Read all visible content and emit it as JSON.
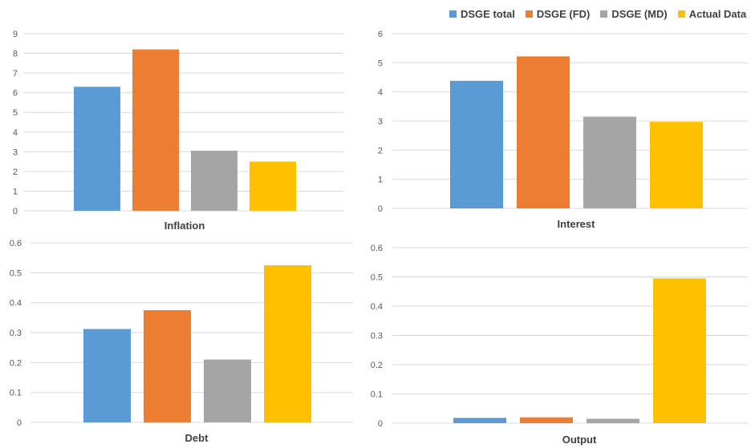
{
  "legend": {
    "items": [
      {
        "name": "DSGE total",
        "color": "#5B9BD5"
      },
      {
        "name": "DSGE (FD)",
        "color": "#ED7D31"
      },
      {
        "name": "DSGE (MD)",
        "color": "#A5A5A5"
      },
      {
        "name": "Actual Data",
        "color": "#FFC000"
      }
    ]
  },
  "chart_data": [
    {
      "type": "bar",
      "title": "Inflation",
      "categories": [
        "DSGE total",
        "DSGE (FD)",
        "DSGE (MD)",
        "Actual Data"
      ],
      "values": [
        6.3,
        8.2,
        3.05,
        2.5
      ],
      "ylim": [
        0,
        9
      ],
      "yticks": [
        "0",
        "1",
        "2",
        "3",
        "4",
        "5",
        "6",
        "7",
        "8",
        "9"
      ],
      "grid": true
    },
    {
      "type": "bar",
      "title": "Interest",
      "categories": [
        "DSGE total",
        "DSGE (FD)",
        "DSGE (MD)",
        "Actual Data"
      ],
      "values": [
        4.38,
        5.22,
        3.15,
        2.97
      ],
      "ylim": [
        0,
        6
      ],
      "yticks": [
        "0",
        "1",
        "2",
        "3",
        "4",
        "5",
        "6"
      ],
      "grid": true
    },
    {
      "type": "bar",
      "title": "Debt",
      "categories": [
        "DSGE total",
        "DSGE (FD)",
        "DSGE (MD)",
        "Actual Data"
      ],
      "values": [
        0.312,
        0.375,
        0.21,
        0.525
      ],
      "ylim": [
        0,
        0.6
      ],
      "yticks": [
        "0",
        "0.1",
        "0.2",
        "0.3",
        "0.4",
        "0.5",
        "0.6"
      ],
      "grid": true
    },
    {
      "type": "bar",
      "title": "Output",
      "categories": [
        "DSGE total",
        "DSGE (FD)",
        "DSGE (MD)",
        "Actual Data"
      ],
      "values": [
        0.018,
        0.02,
        0.015,
        0.495
      ],
      "ylim": [
        0,
        0.6
      ],
      "yticks": [
        "0",
        "0.1",
        "0.2",
        "0.3",
        "0.4",
        "0.5",
        "0.6"
      ],
      "grid": true
    }
  ]
}
